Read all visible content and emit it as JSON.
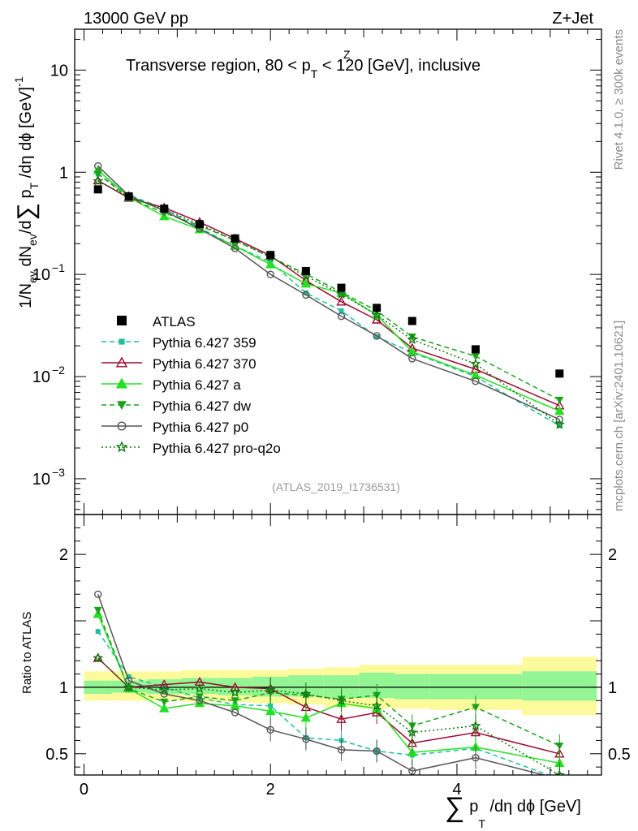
{
  "header": {
    "energy": "13000 GeV pp",
    "process": "Z+Jet",
    "title": "Transverse region, 80 < p",
    "title_sup": "Z",
    "title_sub": "T",
    "title_tail": " < 120 [GeV], inclusive",
    "analysis_id": "(ATLAS_2019_I1736531)",
    "side_rivet": "Rivet 4.1.0, ≥ 300k events",
    "side_mcplots": "mcplots.cern.ch [arXiv:2401.10621]"
  },
  "axes": {
    "y_main_label": "1/N",
    "y_main_parts": [
      "1/N",
      "ev",
      " dN",
      "ev",
      "/d",
      "∑",
      " p",
      "T",
      " /dη dϕ  [GeV]",
      "-1"
    ],
    "y_ratio_label": "Ratio to ATLAS",
    "x_label_prefix": "∑",
    "x_label_p": "p",
    "x_label_sub": "T",
    "x_label_tail": " /dη dϕ [GeV]",
    "main_y_ticks": [
      {
        "value": 10,
        "label": "10"
      },
      {
        "value": 1,
        "label": "1"
      },
      {
        "value": 0.1,
        "label": "10",
        "sup": "−1"
      },
      {
        "value": 0.01,
        "label": "10",
        "sup": "−2"
      },
      {
        "value": 0.001,
        "label": "10",
        "sup": "−3"
      }
    ],
    "ratio_y_ticks": [
      {
        "value": 2,
        "label": "2"
      },
      {
        "value": 1,
        "label": "1"
      },
      {
        "value": 0.5,
        "label": "0.5"
      }
    ],
    "x_ticks": [
      {
        "value": 0,
        "label": "0"
      },
      {
        "value": 2,
        "label": "2"
      },
      {
        "value": 4,
        "label": "4"
      }
    ]
  },
  "chart_data": {
    "type": "scatter",
    "xlim": [
      -0.1,
      5.55
    ],
    "main_ylim_log10": [
      -3.35,
      1.4
    ],
    "ratio_ylim": [
      0.34,
      2.3
    ],
    "x": [
      0.15,
      0.48,
      0.86,
      1.24,
      1.62,
      2.0,
      2.38,
      2.76,
      3.14,
      3.52,
      4.2,
      5.1
    ],
    "bin_edges": [
      0,
      0.3,
      0.67,
      1.05,
      1.43,
      1.81,
      2.19,
      2.57,
      2.95,
      3.33,
      3.71,
      4.7,
      5.5
    ],
    "data": {
      "name": "ATLAS",
      "values": [
        0.68,
        0.58,
        0.44,
        0.31,
        0.225,
        0.155,
        0.108,
        0.074,
        0.047,
        0.035,
        0.0185,
        0.0107
      ],
      "band_inner": [
        [
          0.95,
          1.05
        ],
        [
          0.96,
          1.05
        ],
        [
          0.95,
          1.06
        ],
        [
          0.95,
          1.07
        ],
        [
          0.94,
          1.07
        ],
        [
          0.93,
          1.08
        ],
        [
          0.93,
          1.09
        ],
        [
          0.92,
          1.09
        ],
        [
          0.92,
          1.11
        ],
        [
          0.91,
          1.1
        ],
        [
          0.91,
          1.1
        ],
        [
          0.9,
          1.12
        ]
      ],
      "band_outer": [
        [
          0.9,
          1.12
        ],
        [
          0.9,
          1.12
        ],
        [
          0.9,
          1.12
        ],
        [
          0.89,
          1.13
        ],
        [
          0.89,
          1.13
        ],
        [
          0.88,
          1.13
        ],
        [
          0.87,
          1.14
        ],
        [
          0.85,
          1.15
        ],
        [
          0.84,
          1.17
        ],
        [
          0.84,
          1.17
        ],
        [
          0.83,
          1.17
        ],
        [
          0.79,
          1.23
        ]
      ]
    },
    "series": [
      {
        "name": "Pythia 6.427 359",
        "color": "#1fbf9f",
        "dash": "6,4",
        "marker": "square",
        "values": [
          0.96,
          0.6,
          0.44,
          0.285,
          0.19,
          0.132,
          0.066,
          0.044,
          0.0245,
          0.0172,
          0.01,
          0.0033
        ],
        "ratio": [
          1.42,
          1.08,
          1.0,
          0.92,
          0.87,
          0.86,
          0.62,
          0.6,
          0.52,
          0.49,
          0.54,
          0.31
        ]
      },
      {
        "name": "Pythia 6.427 370",
        "color": "#9b0a2e",
        "dash": "",
        "marker": "triangle-open",
        "values": [
          0.83,
          0.56,
          0.45,
          0.325,
          0.224,
          0.153,
          0.087,
          0.054,
          0.036,
          0.019,
          0.0118,
          0.0052
        ],
        "ratio": [
          1.22,
          1.0,
          1.02,
          1.04,
          1.0,
          0.99,
          0.85,
          0.76,
          0.81,
          0.58,
          0.66,
          0.5
        ]
      },
      {
        "name": "Pythia 6.427 a",
        "color": "#22e022",
        "dash": "",
        "marker": "triangle",
        "values": [
          1.05,
          0.57,
          0.37,
          0.275,
          0.19,
          0.125,
          0.081,
          0.066,
          0.04,
          0.0175,
          0.0103,
          0.0046
        ],
        "ratio": [
          1.55,
          0.99,
          0.84,
          0.88,
          0.86,
          0.82,
          0.77,
          0.88,
          0.84,
          0.51,
          0.55,
          0.43
        ]
      },
      {
        "name": "Pythia 6.427 dw",
        "color": "#1aa31a",
        "dash": "6,4",
        "marker": "triangle-down",
        "values": [
          0.97,
          0.56,
          0.4,
          0.3,
          0.215,
          0.148,
          0.101,
          0.067,
          0.044,
          0.0245,
          0.0158,
          0.0059
        ],
        "ratio": [
          1.58,
          0.99,
          0.89,
          0.93,
          0.9,
          0.96,
          0.94,
          0.91,
          0.94,
          0.71,
          0.85,
          0.56
        ]
      },
      {
        "name": "Pythia 6.427 p0",
        "color": "#555555",
        "dash": "",
        "marker": "circle-open",
        "values": [
          1.15,
          0.59,
          0.42,
          0.28,
          0.18,
          0.1,
          0.063,
          0.039,
          0.025,
          0.015,
          0.009,
          0.0038
        ],
        "ratio": [
          1.7,
          1.05,
          0.95,
          0.9,
          0.81,
          0.68,
          0.61,
          0.53,
          0.52,
          0.37,
          0.47,
          0.31
        ]
      },
      {
        "name": "Pythia 6.427 pro-q2o",
        "color": "#127a12",
        "dash": "2,3",
        "marker": "star",
        "values": [
          0.82,
          0.58,
          0.43,
          0.31,
          0.215,
          0.148,
          0.096,
          0.064,
          0.04,
          0.023,
          0.0133,
          0.0034
        ],
        "ratio": [
          1.22,
          1.0,
          0.98,
          0.99,
          0.96,
          0.98,
          0.95,
          0.9,
          0.86,
          0.66,
          0.71,
          0.34
        ]
      }
    ]
  }
}
